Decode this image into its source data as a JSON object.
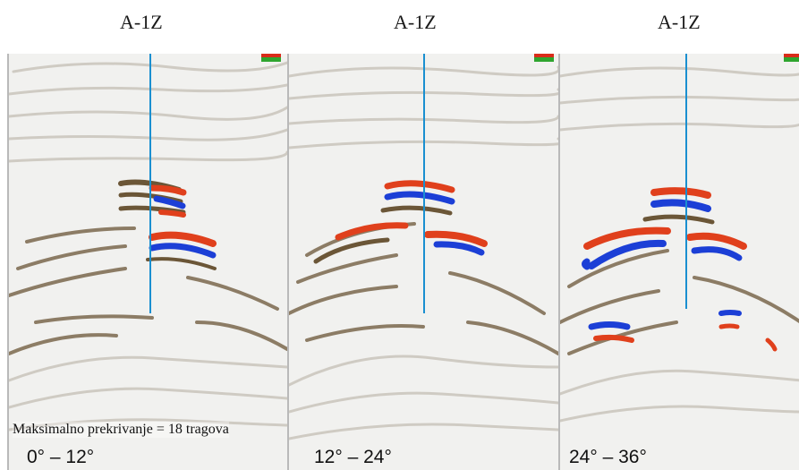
{
  "panels": [
    {
      "well_label": "A-1Z",
      "angle_range": "0° – 12°"
    },
    {
      "well_label": "A-1Z",
      "angle_range": "12° – 24°"
    },
    {
      "well_label": "A-1Z",
      "angle_range": "24° – 36°"
    }
  ],
  "fold_note": "Maksimalno prekrivanje = 18 tragova",
  "colors": {
    "background": "#f1f1ef",
    "trough": "#1c3fd6",
    "peak": "#e0401c",
    "faint_event": "#6b5637",
    "well_path": "#1a8fd0"
  },
  "icons": [
    "display-settings-icon"
  ]
}
